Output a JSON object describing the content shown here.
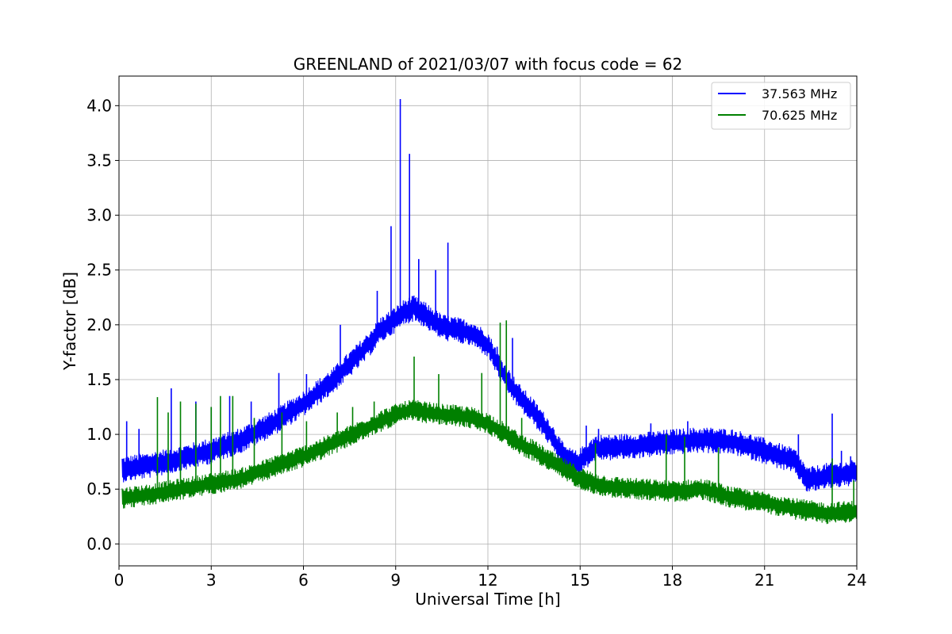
{
  "chart_data": {
    "type": "line",
    "title": "GREENLAND of 2021/03/07 with focus code = 62",
    "xlabel": "Universal Time [h]",
    "ylabel": "Y-factor [dB]",
    "xlim": [
      0,
      24
    ],
    "ylim": [
      -0.2,
      4.27
    ],
    "xticks": [
      0,
      3,
      6,
      9,
      12,
      15,
      18,
      21,
      24
    ],
    "xtick_labels": [
      "0",
      "3",
      "6",
      "9",
      "12",
      "15",
      "18",
      "21",
      "24"
    ],
    "yticks": [
      0.0,
      0.5,
      1.0,
      1.5,
      2.0,
      2.5,
      3.0,
      3.5,
      4.0
    ],
    "ytick_labels": [
      "0.0",
      "0.5",
      "1.0",
      "1.5",
      "2.0",
      "2.5",
      "3.0",
      "3.5",
      "4.0"
    ],
    "grid": true,
    "legend_position": "top-right",
    "series": [
      {
        "name": "37.563 MHz",
        "color": "#0000ff",
        "band_halfwidth": 0.12,
        "x": [
          0.1,
          1,
          2,
          3,
          4,
          5,
          6,
          7,
          8,
          8.5,
          9,
          9.3,
          9.6,
          9.9,
          10.5,
          11,
          11.5,
          12,
          12.5,
          13,
          13.5,
          14,
          14.5,
          14.9,
          15.5,
          16,
          17,
          18,
          19,
          20,
          21,
          22,
          22.4,
          23,
          24
        ],
        "values": [
          0.68,
          0.72,
          0.78,
          0.85,
          0.95,
          1.1,
          1.28,
          1.5,
          1.78,
          1.95,
          2.05,
          2.12,
          2.15,
          2.1,
          1.98,
          1.95,
          1.92,
          1.82,
          1.55,
          1.35,
          1.2,
          1.02,
          0.78,
          0.73,
          0.88,
          0.88,
          0.9,
          0.93,
          0.95,
          0.93,
          0.85,
          0.75,
          0.58,
          0.62,
          0.65
        ],
        "spikes": [
          [
            0.25,
            1.12
          ],
          [
            0.65,
            1.05
          ],
          [
            1.7,
            1.42
          ],
          [
            2.5,
            1.3
          ],
          [
            3.0,
            1.25
          ],
          [
            3.6,
            1.35
          ],
          [
            4.3,
            1.3
          ],
          [
            5.2,
            1.56
          ],
          [
            6.1,
            1.55
          ],
          [
            7.2,
            2.0
          ],
          [
            8.4,
            2.31
          ],
          [
            8.85,
            2.9
          ],
          [
            9.15,
            4.06
          ],
          [
            9.45,
            3.56
          ],
          [
            9.75,
            2.6
          ],
          [
            10.3,
            2.5
          ],
          [
            10.7,
            2.75
          ],
          [
            12.3,
            1.8
          ],
          [
            12.8,
            1.88
          ],
          [
            14.3,
            0.98
          ],
          [
            15.2,
            1.08
          ],
          [
            15.6,
            1.05
          ],
          [
            17.3,
            1.1
          ],
          [
            18.5,
            1.12
          ],
          [
            22.1,
            1.0
          ],
          [
            23.2,
            1.19
          ],
          [
            23.5,
            0.85
          ],
          [
            23.8,
            0.8
          ]
        ]
      },
      {
        "name": "70.625 MHz",
        "color": "#008000",
        "band_halfwidth": 0.1,
        "x": [
          0.1,
          1,
          2,
          3,
          4,
          5,
          6,
          7,
          8,
          8.5,
          9,
          9.5,
          10,
          10.5,
          11,
          11.5,
          12,
          12.5,
          13,
          13.5,
          14,
          14.5,
          15,
          15.5,
          16,
          17,
          18,
          19,
          20,
          21,
          22,
          23,
          24
        ],
        "values": [
          0.42,
          0.45,
          0.5,
          0.55,
          0.6,
          0.7,
          0.8,
          0.92,
          1.05,
          1.12,
          1.18,
          1.22,
          1.2,
          1.18,
          1.17,
          1.15,
          1.1,
          1.02,
          0.92,
          0.85,
          0.76,
          0.68,
          0.6,
          0.55,
          0.52,
          0.5,
          0.48,
          0.5,
          0.42,
          0.38,
          0.32,
          0.28,
          0.3
        ],
        "spikes": [
          [
            1.25,
            1.34
          ],
          [
            1.6,
            1.2
          ],
          [
            2.0,
            1.3
          ],
          [
            2.5,
            1.28
          ],
          [
            3.0,
            1.25
          ],
          [
            3.3,
            1.35
          ],
          [
            3.7,
            1.35
          ],
          [
            4.4,
            1.15
          ],
          [
            5.3,
            1.2
          ],
          [
            6.1,
            1.12
          ],
          [
            7.1,
            1.2
          ],
          [
            7.6,
            1.25
          ],
          [
            8.3,
            1.3
          ],
          [
            9.6,
            1.71
          ],
          [
            10.4,
            1.55
          ],
          [
            11.8,
            1.56
          ],
          [
            12.4,
            2.02
          ],
          [
            12.6,
            2.04
          ],
          [
            13.1,
            1.15
          ],
          [
            15.5,
            0.92
          ],
          [
            17.8,
            1.0
          ],
          [
            18.4,
            0.98
          ],
          [
            19.5,
            0.88
          ],
          [
            23.2,
            0.78
          ],
          [
            23.9,
            0.58
          ]
        ]
      }
    ]
  }
}
